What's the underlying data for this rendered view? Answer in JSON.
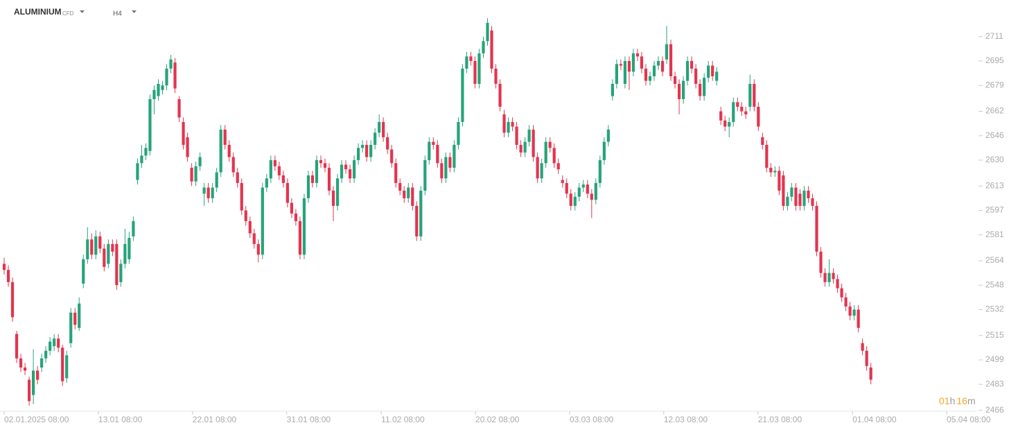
{
  "header": {
    "symbol": "ALUMINIUM",
    "instrument_type": "CFD",
    "timeframe": "H4"
  },
  "countdown": {
    "hours": "01",
    "hours_unit": "h",
    "minutes": "16",
    "minutes_unit": "m"
  },
  "chart_data": {
    "type": "candlestick",
    "up_color": "#26a37a",
    "down_color": "#e3344f",
    "xlim": [
      -1,
      233.5
    ],
    "xticks": [
      {
        "value": 0,
        "label": "02.01.2025 08:00"
      },
      {
        "value": 22.6,
        "label": "13.01 08:00"
      },
      {
        "value": 45.2,
        "label": "22.01 08:00"
      },
      {
        "value": 67.8,
        "label": "31.01 08:00"
      },
      {
        "value": 90.5,
        "label": "11.02 08:00"
      },
      {
        "value": 113.1,
        "label": "20.02 08:00"
      },
      {
        "value": 135.7,
        "label": "03.03 08:00"
      },
      {
        "value": 158.3,
        "label": "12.03 08:00"
      },
      {
        "value": 180.9,
        "label": "21.03 08:00"
      },
      {
        "value": 203.6,
        "label": "01.04 08:00"
      },
      {
        "value": 226.2,
        "label": "05.04 08:00"
      }
    ],
    "ylim": [
      2464,
      2735
    ],
    "yticks": [
      2466,
      2483,
      2499,
      2515,
      2532,
      2548,
      2564,
      2581,
      2597,
      2613,
      2630,
      2646,
      2662,
      2679,
      2695,
      2711
    ],
    "candles": [
      [
        2562,
        2566,
        2555,
        2558
      ],
      [
        2558,
        2561,
        2547,
        2550
      ],
      [
        2550,
        2553,
        2524,
        2527
      ],
      [
        2516,
        2518,
        2497,
        2500
      ],
      [
        2500,
        2503,
        2491,
        2494
      ],
      [
        2494,
        2497,
        2489,
        2492
      ],
      [
        2486,
        2488,
        2469,
        2472
      ],
      [
        2476,
        2506,
        2470,
        2492
      ],
      [
        2492,
        2495,
        2483,
        2486
      ],
      [
        2494,
        2503,
        2491,
        2500
      ],
      [
        2500,
        2508,
        2497,
        2505
      ],
      [
        2505,
        2514,
        2502,
        2511
      ],
      [
        2508,
        2516,
        2505,
        2513
      ],
      [
        2513,
        2516,
        2504,
        2507
      ],
      [
        2507,
        2509,
        2482,
        2485
      ],
      [
        2487,
        2505,
        2484,
        2502
      ],
      [
        2510,
        2533,
        2507,
        2530
      ],
      [
        2530,
        2533,
        2519,
        2522
      ],
      [
        2520,
        2540,
        2518,
        2536
      ],
      [
        2549,
        2568,
        2546,
        2565
      ],
      [
        2565,
        2586,
        2562,
        2578
      ],
      [
        2578,
        2582,
        2565,
        2568
      ],
      [
        2568,
        2584,
        2565,
        2580
      ],
      [
        2580,
        2583,
        2569,
        2572
      ],
      [
        2572,
        2575,
        2557,
        2560
      ],
      [
        2562,
        2578,
        2559,
        2575
      ],
      [
        2575,
        2578,
        2567,
        2570
      ],
      [
        2575,
        2578,
        2545,
        2548
      ],
      [
        2550,
        2565,
        2547,
        2562
      ],
      [
        2562,
        2585,
        2559,
        2575
      ],
      [
        2565,
        2583,
        2562,
        2579
      ],
      [
        2580,
        2593,
        2577,
        2590
      ],
      [
        2617,
        2631,
        2614,
        2628
      ],
      [
        2628,
        2640,
        2625,
        2633
      ],
      [
        2633,
        2641,
        2630,
        2638
      ],
      [
        2636,
        2673,
        2633,
        2670
      ],
      [
        2670,
        2679,
        2660,
        2676
      ],
      [
        2672,
        2683,
        2669,
        2680
      ],
      [
        2676,
        2682,
        2673,
        2679
      ],
      [
        2679,
        2693,
        2676,
        2690
      ],
      [
        2690,
        2699,
        2687,
        2696
      ],
      [
        2694,
        2697,
        2674,
        2677
      ],
      [
        2670,
        2672,
        2655,
        2658
      ],
      [
        2655,
        2658,
        2637,
        2640
      ],
      [
        2645,
        2648,
        2629,
        2632
      ],
      [
        2625,
        2628,
        2613,
        2616
      ],
      [
        2616,
        2629,
        2613,
        2626
      ],
      [
        2626,
        2635,
        2623,
        2632
      ],
      [
        2608,
        2615,
        2600,
        2612
      ],
      [
        2612,
        2615,
        2602,
        2605
      ],
      [
        2605,
        2615,
        2602,
        2612
      ],
      [
        2612,
        2625,
        2609,
        2622
      ],
      [
        2622,
        2653,
        2619,
        2650
      ],
      [
        2650,
        2653,
        2637,
        2640
      ],
      [
        2640,
        2643,
        2629,
        2632
      ],
      [
        2632,
        2635,
        2619,
        2622
      ],
      [
        2622,
        2625,
        2612,
        2615
      ],
      [
        2615,
        2618,
        2594,
        2597
      ],
      [
        2597,
        2600,
        2587,
        2590
      ],
      [
        2590,
        2593,
        2579,
        2582
      ],
      [
        2582,
        2585,
        2572,
        2575
      ],
      [
        2575,
        2578,
        2563,
        2568
      ],
      [
        2568,
        2615,
        2565,
        2612
      ],
      [
        2612,
        2621,
        2609,
        2618
      ],
      [
        2618,
        2633,
        2615,
        2630
      ],
      [
        2630,
        2633,
        2623,
        2626
      ],
      [
        2626,
        2629,
        2617,
        2620
      ],
      [
        2620,
        2623,
        2612,
        2615
      ],
      [
        2615,
        2618,
        2599,
        2602
      ],
      [
        2602,
        2605,
        2592,
        2595
      ],
      [
        2595,
        2598,
        2587,
        2590
      ],
      [
        2590,
        2593,
        2565,
        2568
      ],
      [
        2568,
        2608,
        2565,
        2605
      ],
      [
        2605,
        2623,
        2602,
        2620
      ],
      [
        2620,
        2623,
        2612,
        2615
      ],
      [
        2615,
        2633,
        2612,
        2630
      ],
      [
        2630,
        2633,
        2625,
        2628
      ],
      [
        2628,
        2631,
        2622,
        2625
      ],
      [
        2625,
        2628,
        2607,
        2610
      ],
      [
        2610,
        2613,
        2590,
        2600
      ],
      [
        2600,
        2621,
        2597,
        2618
      ],
      [
        2618,
        2630,
        2615,
        2627
      ],
      [
        2627,
        2630,
        2621,
        2624
      ],
      [
        2624,
        2627,
        2615,
        2618
      ],
      [
        2618,
        2633,
        2615,
        2630
      ],
      [
        2630,
        2641,
        2627,
        2638
      ],
      [
        2638,
        2643,
        2635,
        2640
      ],
      [
        2640,
        2643,
        2629,
        2632
      ],
      [
        2632,
        2643,
        2629,
        2640
      ],
      [
        2640,
        2651,
        2637,
        2648
      ],
      [
        2648,
        2660,
        2645,
        2655
      ],
      [
        2655,
        2658,
        2642,
        2645
      ],
      [
        2645,
        2648,
        2634,
        2637
      ],
      [
        2637,
        2640,
        2625,
        2628
      ],
      [
        2628,
        2631,
        2612,
        2615
      ],
      [
        2615,
        2618,
        2607,
        2610
      ],
      [
        2610,
        2613,
        2602,
        2605
      ],
      [
        2605,
        2615,
        2602,
        2612
      ],
      [
        2612,
        2615,
        2597,
        2600
      ],
      [
        2600,
        2603,
        2577,
        2580
      ],
      [
        2580,
        2613,
        2577,
        2610
      ],
      [
        2610,
        2633,
        2607,
        2630
      ],
      [
        2630,
        2645,
        2627,
        2642
      ],
      [
        2642,
        2645,
        2637,
        2640
      ],
      [
        2640,
        2643,
        2625,
        2628
      ],
      [
        2628,
        2631,
        2615,
        2618
      ],
      [
        2618,
        2635,
        2615,
        2632
      ],
      [
        2632,
        2635,
        2622,
        2625
      ],
      [
        2625,
        2643,
        2622,
        2640
      ],
      [
        2640,
        2658,
        2637,
        2655
      ],
      [
        2655,
        2693,
        2652,
        2690
      ],
      [
        2690,
        2701,
        2687,
        2698
      ],
      [
        2698,
        2701,
        2692,
        2695
      ],
      [
        2695,
        2698,
        2677,
        2680
      ],
      [
        2680,
        2703,
        2677,
        2700
      ],
      [
        2700,
        2711,
        2697,
        2708
      ],
      [
        2708,
        2723,
        2705,
        2720
      ],
      [
        2715,
        2718,
        2687,
        2690
      ],
      [
        2690,
        2693,
        2677,
        2680
      ],
      [
        2680,
        2683,
        2662,
        2665
      ],
      [
        2660,
        2663,
        2645,
        2648
      ],
      [
        2648,
        2658,
        2645,
        2655
      ],
      [
        2655,
        2658,
        2649,
        2652
      ],
      [
        2652,
        2655,
        2637,
        2640
      ],
      [
        2640,
        2643,
        2632,
        2635
      ],
      [
        2635,
        2645,
        2632,
        2642
      ],
      [
        2642,
        2653,
        2639,
        2650
      ],
      [
        2650,
        2653,
        2629,
        2632
      ],
      [
        2632,
        2635,
        2615,
        2618
      ],
      [
        2618,
        2631,
        2615,
        2628
      ],
      [
        2628,
        2645,
        2625,
        2642
      ],
      [
        2642,
        2645,
        2635,
        2638
      ],
      [
        2638,
        2641,
        2625,
        2628
      ],
      [
        2628,
        2631,
        2621,
        2624
      ],
      [
        2617,
        2620,
        2612,
        2615
      ],
      [
        2615,
        2618,
        2605,
        2608
      ],
      [
        2608,
        2611,
        2597,
        2600
      ],
      [
        2600,
        2609,
        2597,
        2606
      ],
      [
        2606,
        2615,
        2603,
        2612
      ],
      [
        2612,
        2617,
        2609,
        2614
      ],
      [
        2614,
        2617,
        2605,
        2608
      ],
      [
        2608,
        2611,
        2592,
        2604
      ],
      [
        2604,
        2618,
        2601,
        2615
      ],
      [
        2615,
        2633,
        2612,
        2630
      ],
      [
        2630,
        2645,
        2627,
        2642
      ],
      [
        2642,
        2653,
        2639,
        2650
      ],
      [
        2672,
        2683,
        2669,
        2680
      ],
      [
        2680,
        2696,
        2677,
        2693
      ],
      [
        2693,
        2696,
        2689,
        2692
      ],
      [
        2680,
        2698,
        2677,
        2695
      ],
      [
        2695,
        2698,
        2676,
        2688
      ],
      [
        2688,
        2703,
        2685,
        2700
      ],
      [
        2700,
        2703,
        2695,
        2698
      ],
      [
        2698,
        2701,
        2687,
        2690
      ],
      [
        2690,
        2693,
        2679,
        2682
      ],
      [
        2682,
        2688,
        2679,
        2685
      ],
      [
        2685,
        2695,
        2682,
        2692
      ],
      [
        2692,
        2698,
        2689,
        2695
      ],
      [
        2695,
        2698,
        2685,
        2688
      ],
      [
        2696,
        2718,
        2693,
        2706
      ],
      [
        2706,
        2709,
        2682,
        2685
      ],
      [
        2685,
        2688,
        2677,
        2680
      ],
      [
        2680,
        2683,
        2660,
        2670
      ],
      [
        2670,
        2685,
        2667,
        2682
      ],
      [
        2682,
        2698,
        2679,
        2695
      ],
      [
        2695,
        2698,
        2687,
        2690
      ],
      [
        2690,
        2693,
        2677,
        2680
      ],
      [
        2680,
        2683,
        2669,
        2672
      ],
      [
        2672,
        2687,
        2669,
        2684
      ],
      [
        2684,
        2695,
        2681,
        2692
      ],
      [
        2692,
        2695,
        2682,
        2685
      ],
      [
        2682,
        2691,
        2679,
        2688
      ],
      [
        2662,
        2665,
        2653,
        2656
      ],
      [
        2656,
        2659,
        2649,
        2652
      ],
      [
        2652,
        2658,
        2645,
        2655
      ],
      [
        2655,
        2671,
        2652,
        2668
      ],
      [
        2668,
        2671,
        2662,
        2665
      ],
      [
        2665,
        2668,
        2659,
        2662
      ],
      [
        2662,
        2665,
        2657,
        2660
      ],
      [
        2665,
        2686,
        2662,
        2680
      ],
      [
        2680,
        2683,
        2662,
        2665
      ],
      [
        2665,
        2668,
        2649,
        2652
      ],
      [
        2645,
        2648,
        2637,
        2640
      ],
      [
        2640,
        2643,
        2622,
        2625
      ],
      [
        2625,
        2628,
        2619,
        2622
      ],
      [
        2622,
        2626,
        2619,
        2623
      ],
      [
        2623,
        2626,
        2607,
        2610
      ],
      [
        2620,
        2623,
        2597,
        2600
      ],
      [
        2600,
        2609,
        2597,
        2606
      ],
      [
        2606,
        2615,
        2603,
        2612
      ],
      [
        2612,
        2615,
        2597,
        2600
      ],
      [
        2608,
        2611,
        2597,
        2600
      ],
      [
        2600,
        2613,
        2597,
        2610
      ],
      [
        2610,
        2613,
        2602,
        2605
      ],
      [
        2605,
        2608,
        2597,
        2600
      ],
      [
        2600,
        2603,
        2567,
        2570
      ],
      [
        2570,
        2573,
        2553,
        2556
      ],
      [
        2556,
        2559,
        2547,
        2550
      ],
      [
        2550,
        2565,
        2547,
        2556
      ],
      [
        2556,
        2559,
        2549,
        2552
      ],
      [
        2552,
        2555,
        2543,
        2546
      ],
      [
        2546,
        2549,
        2537,
        2540
      ],
      [
        2540,
        2543,
        2531,
        2534
      ],
      [
        2534,
        2537,
        2525,
        2528
      ],
      [
        2528,
        2535,
        2525,
        2532
      ],
      [
        2532,
        2535,
        2517,
        2520
      ],
      [
        2510,
        2513,
        2502,
        2505
      ],
      [
        2505,
        2508,
        2492,
        2495
      ],
      [
        2494,
        2497,
        2483,
        2486
      ]
    ]
  }
}
